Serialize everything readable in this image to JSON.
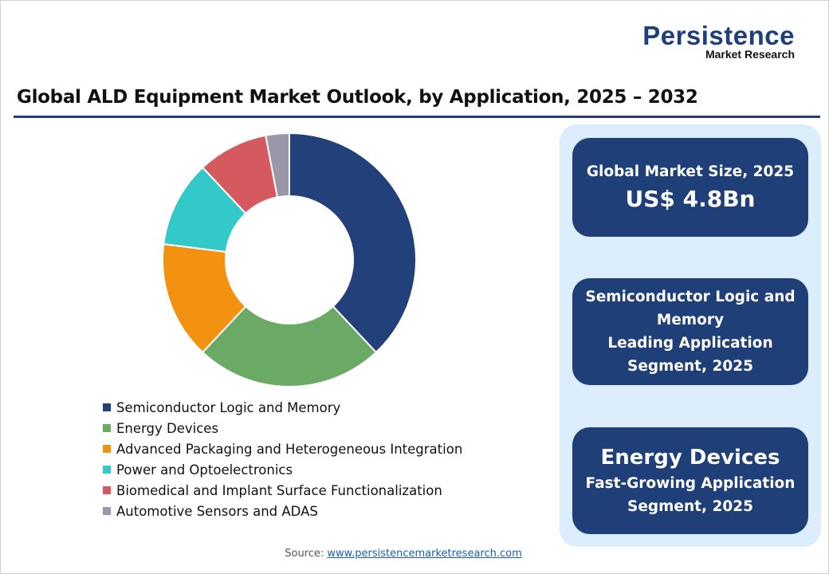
{
  "logo": {
    "line1": "Persistence",
    "line2": "Market Research"
  },
  "chart_data": {
    "type": "pie",
    "title": "Global ALD Equipment Market Outlook, by Application, 2025 – 2032",
    "donut": true,
    "categories": [
      "Semiconductor Logic and Memory",
      "Energy Devices",
      "Advanced Packaging and Heterogeneous Integration",
      "Power and Optoelectronics",
      "Biomedical and Implant Surface Functionalization",
      "Automotive Sensors and ADAS"
    ],
    "values": [
      38,
      24,
      15,
      11,
      9,
      3
    ],
    "unit": "% share (estimated)",
    "colors": [
      "#22407a",
      "#6aaa64",
      "#f39210",
      "#33c9c8",
      "#d45a5f",
      "#9a97a8"
    ],
    "legend_position": "bottom-left"
  },
  "cards": [
    {
      "line1": "Global Market Size, 2025",
      "line2": "US$ 4.8Bn"
    },
    {
      "line1": "Semiconductor Logic and",
      "line2": "Memory",
      "line3": "Leading Application",
      "line4": "Segment, 2025"
    },
    {
      "line1": "Energy Devices",
      "line2": "Fast-Growing Application",
      "line3": "Segment, 2025"
    }
  ],
  "source": {
    "label": "Source:",
    "link": "www.persistencemarketresearch.com"
  }
}
